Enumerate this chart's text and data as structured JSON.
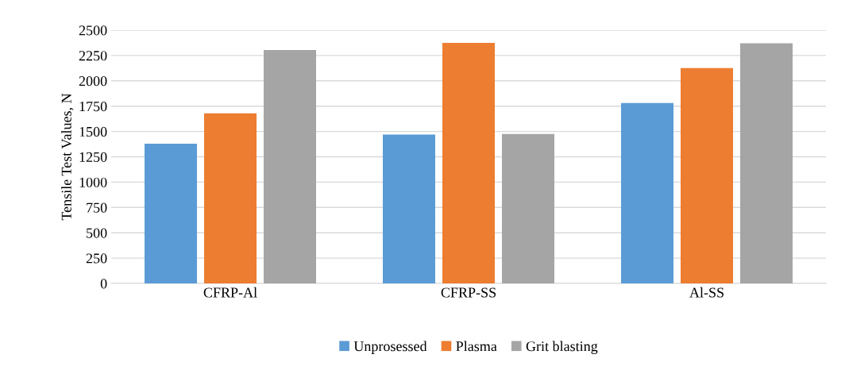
{
  "chart_data": {
    "type": "bar",
    "ylabel": "Tensile Test Values, N",
    "categories": [
      "CFRP-Al",
      "CFRP-SS",
      "Al-SS"
    ],
    "series": [
      {
        "name": "Unprosessed",
        "color": "#5b9bd5",
        "values": [
          1380,
          1470,
          1780
        ]
      },
      {
        "name": "Plasma",
        "color": "#ed7d31",
        "values": [
          1680,
          2375,
          2125
        ]
      },
      {
        "name": "Grit blasting",
        "color": "#a5a5a5",
        "values": [
          2305,
          1475,
          2370
        ]
      }
    ],
    "ylim": [
      0,
      2500
    ],
    "yticks": [
      0,
      250,
      500,
      750,
      1000,
      1250,
      1500,
      1750,
      2000,
      2250,
      2500
    ],
    "grid": "y",
    "legend": "bottom"
  }
}
